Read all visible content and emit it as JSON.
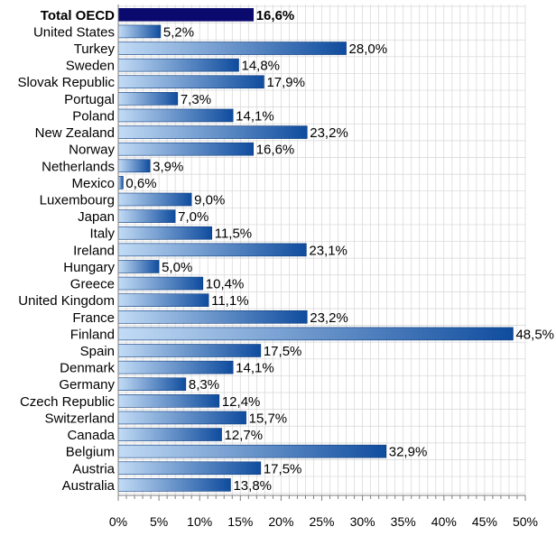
{
  "chart_data": {
    "type": "bar",
    "orientation": "horizontal",
    "categories": [
      "Total OECD",
      "United States",
      "Turkey",
      "Sweden",
      "Slovak Republic",
      "Portugal",
      "Poland",
      "New Zealand",
      "Norway",
      "Netherlands",
      "Mexico",
      "Luxembourg",
      "Japan",
      "Italy",
      "Ireland",
      "Hungary",
      "Greece",
      "United Kingdom",
      "France",
      "Finland",
      "Spain",
      "Denmark",
      "Germany",
      "Czech Republic",
      "Switzerland",
      "Canada",
      "Belgium",
      "Austria",
      "Australia"
    ],
    "values": [
      16.6,
      5.2,
      28.0,
      14.8,
      17.9,
      7.3,
      14.1,
      23.2,
      16.6,
      3.9,
      0.6,
      9.0,
      7.0,
      11.5,
      23.1,
      5.0,
      10.4,
      11.1,
      23.2,
      48.5,
      17.5,
      14.1,
      8.3,
      12.4,
      15.7,
      12.7,
      32.9,
      17.5,
      13.8
    ],
    "value_labels": [
      "16,6%",
      "5,2%",
      "28,0%",
      "14,8%",
      "17,9%",
      "7,3%",
      "14,1%",
      "23,2%",
      "16,6%",
      "3,9%",
      "0,6%",
      "9,0%",
      "7,0%",
      "11,5%",
      "23,1%",
      "5,0%",
      "10,4%",
      "11,1%",
      "23,2%",
      "48,5%",
      "17,5%",
      "14,1%",
      "8,3%",
      "12,4%",
      "15,7%",
      "12,7%",
      "32,9%",
      "17,5%",
      "13,8%"
    ],
    "highlight_index": 0,
    "x_ticks": [
      "0%",
      "5%",
      "10%",
      "15%",
      "20%",
      "25%",
      "30%",
      "35%",
      "40%",
      "45%",
      "50%"
    ],
    "xlim": [
      0,
      50
    ],
    "grid": true,
    "colors": {
      "bar_light": "#c3dcf6",
      "bar_dark": "#0f4c9e",
      "highlight": "#0a0a6e",
      "grid": "#d6d6d6",
      "axis": "#7f7f7f"
    }
  }
}
